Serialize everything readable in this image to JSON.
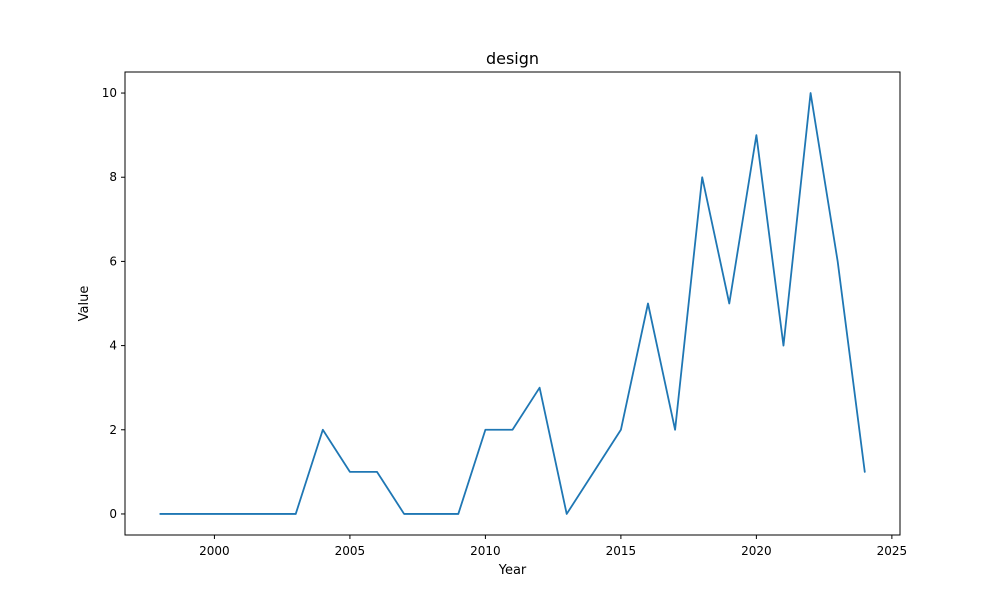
{
  "chart_data": {
    "type": "line",
    "title": "design",
    "xlabel": "Year",
    "ylabel": "Value",
    "x": [
      1998,
      1999,
      2000,
      2001,
      2002,
      2003,
      2004,
      2005,
      2006,
      2007,
      2008,
      2009,
      2010,
      2011,
      2012,
      2013,
      2014,
      2015,
      2016,
      2017,
      2018,
      2019,
      2020,
      2021,
      2022,
      2023,
      2024
    ],
    "series": [
      {
        "values": [
          0,
          0,
          0,
          0,
          0,
          0,
          2,
          1,
          1,
          0,
          0,
          0,
          2,
          2,
          3,
          0,
          1,
          2,
          5,
          2,
          8,
          5,
          9,
          4,
          10,
          6,
          1
        ],
        "color": "#1f77b4"
      }
    ],
    "xlim": [
      1996.7,
      2025.3
    ],
    "ylim": [
      -0.5,
      10.5
    ],
    "xticks": [
      2000,
      2005,
      2010,
      2015,
      2020,
      2025
    ],
    "yticks": [
      0,
      2,
      4,
      6,
      8,
      10
    ],
    "grid": false,
    "legend": "none"
  }
}
